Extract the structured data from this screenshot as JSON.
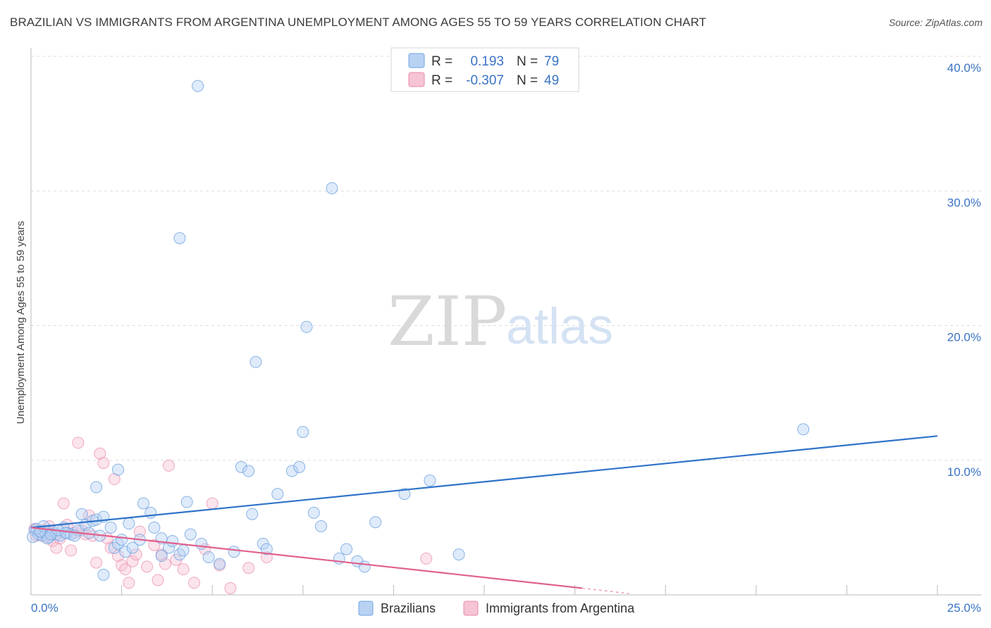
{
  "title": "BRAZILIAN VS IMMIGRANTS FROM ARGENTINA UNEMPLOYMENT AMONG AGES 55 TO 59 YEARS CORRELATION CHART",
  "source": "Source: ZipAtlas.com",
  "watermark": {
    "zip": "ZIP",
    "atlas": "atlas"
  },
  "colors": {
    "blue": "#6fa3e0",
    "blue_fill": "#b8d2f3",
    "blue_line": "#2f73c9",
    "pink": "#e98aa9",
    "pink_fill": "#f6c4d4",
    "pink_line": "#e0608d",
    "tick_text": "#3a73c4",
    "grid": "#dddddd"
  },
  "legend_top": {
    "rows": [
      {
        "r_label": "R =",
        "r_value": "0.193",
        "n_label": "N =",
        "n_value": "79"
      },
      {
        "r_label": "R =",
        "r_value": "-0.307",
        "n_label": "N =",
        "n_value": "49"
      }
    ]
  },
  "legend_bottom": {
    "series1": "Brazilians",
    "series2": "Immigrants from Argentina"
  },
  "chart_data": {
    "type": "scatter",
    "title": "BRAZILIAN VS IMMIGRANTS FROM ARGENTINA UNEMPLOYMENT AMONG AGES 55 TO 59 YEARS CORRELATION CHART",
    "xlabel": "",
    "ylabel": "Unemployment Among Ages 55 to 59 years",
    "xlim": [
      0,
      25
    ],
    "ylim": [
      0,
      40
    ],
    "x_tick_labels": [
      "0.0%",
      "25.0%"
    ],
    "y_tick_values": [
      10,
      20,
      30,
      40
    ],
    "y_tick_labels": [
      "10.0%",
      "20.0%",
      "30.0%",
      "40.0%"
    ],
    "grid": true,
    "legend_position": "top-center",
    "series": [
      {
        "name": "Brazilians",
        "r": 0.193,
        "n": 79,
        "trend": {
          "x0": 0,
          "y0": 5.0,
          "x1": 25,
          "y1": 11.8
        },
        "points": [
          [
            0.1,
            4.8
          ],
          [
            0.2,
            4.5
          ],
          [
            0.3,
            4.4
          ],
          [
            0.4,
            4.6
          ],
          [
            0.5,
            4.3
          ],
          [
            0.6,
            4.7
          ],
          [
            0.7,
            4.5
          ],
          [
            0.8,
            4.4
          ],
          [
            0.9,
            5.0
          ],
          [
            1.0,
            4.6
          ],
          [
            1.1,
            4.5
          ],
          [
            1.3,
            4.8
          ],
          [
            1.4,
            6.0
          ],
          [
            1.5,
            5.2
          ],
          [
            1.6,
            4.6
          ],
          [
            1.7,
            5.5
          ],
          [
            1.8,
            5.6
          ],
          [
            1.9,
            4.4
          ],
          [
            2.0,
            5.8
          ],
          [
            2.2,
            5.0
          ],
          [
            2.3,
            3.5
          ],
          [
            2.4,
            3.8
          ],
          [
            2.5,
            4.1
          ],
          [
            2.6,
            3.2
          ],
          [
            2.7,
            5.3
          ],
          [
            2.8,
            3.5
          ],
          [
            3.0,
            4.1
          ],
          [
            3.1,
            6.8
          ],
          [
            3.3,
            6.1
          ],
          [
            3.4,
            5.0
          ],
          [
            3.6,
            4.2
          ],
          [
            3.8,
            3.5
          ],
          [
            3.9,
            4.0
          ],
          [
            4.1,
            3.0
          ],
          [
            4.2,
            3.3
          ],
          [
            4.3,
            6.9
          ],
          [
            4.4,
            4.5
          ],
          [
            4.6,
            37.8
          ],
          [
            4.7,
            3.8
          ],
          [
            4.9,
            2.8
          ],
          [
            5.2,
            2.3
          ],
          [
            5.6,
            3.2
          ],
          [
            5.8,
            9.5
          ],
          [
            6.0,
            9.2
          ],
          [
            6.1,
            6.0
          ],
          [
            6.2,
            17.3
          ],
          [
            6.4,
            3.8
          ],
          [
            6.5,
            3.4
          ],
          [
            6.8,
            7.5
          ],
          [
            7.2,
            9.2
          ],
          [
            7.4,
            9.5
          ],
          [
            7.5,
            12.1
          ],
          [
            7.6,
            19.9
          ],
          [
            7.8,
            6.1
          ],
          [
            8.0,
            5.1
          ],
          [
            8.3,
            30.2
          ],
          [
            8.5,
            2.7
          ],
          [
            8.7,
            3.4
          ],
          [
            9.0,
            2.5
          ],
          [
            9.2,
            2.1
          ],
          [
            9.5,
            5.4
          ],
          [
            10.3,
            7.5
          ],
          [
            11.0,
            8.5
          ],
          [
            11.8,
            3.0
          ],
          [
            21.3,
            12.3
          ],
          [
            0.05,
            4.3
          ],
          [
            0.15,
            4.9
          ],
          [
            0.35,
            5.1
          ],
          [
            0.45,
            4.2
          ],
          [
            0.55,
            4.5
          ],
          [
            0.75,
            4.8
          ],
          [
            0.95,
            4.6
          ],
          [
            1.2,
            4.4
          ],
          [
            1.8,
            8.0
          ],
          [
            2.4,
            9.3
          ],
          [
            3.6,
            2.9
          ],
          [
            4.1,
            26.5
          ],
          [
            2.0,
            1.5
          ],
          [
            0.25,
            4.7
          ]
        ]
      },
      {
        "name": "Immigrants from Argentina",
        "r": -0.307,
        "n": 49,
        "trend": {
          "x0": 0,
          "y0": 5.0,
          "x1": 15.2,
          "y1": 0.5
        },
        "trend_dashed_to": {
          "x": 16.5,
          "y": 0.1
        },
        "points": [
          [
            0.1,
            4.9
          ],
          [
            0.2,
            4.5
          ],
          [
            0.3,
            4.6
          ],
          [
            0.4,
            4.3
          ],
          [
            0.5,
            5.1
          ],
          [
            0.6,
            4.0
          ],
          [
            0.7,
            3.5
          ],
          [
            0.8,
            4.2
          ],
          [
            0.9,
            6.8
          ],
          [
            1.0,
            5.2
          ],
          [
            1.1,
            3.3
          ],
          [
            1.2,
            4.6
          ],
          [
            1.3,
            11.3
          ],
          [
            1.4,
            4.8
          ],
          [
            1.5,
            4.5
          ],
          [
            1.6,
            5.9
          ],
          [
            1.7,
            4.4
          ],
          [
            1.8,
            2.4
          ],
          [
            1.9,
            10.5
          ],
          [
            2.0,
            9.8
          ],
          [
            2.1,
            4.2
          ],
          [
            2.2,
            3.5
          ],
          [
            2.3,
            8.6
          ],
          [
            2.4,
            2.9
          ],
          [
            2.5,
            2.2
          ],
          [
            2.6,
            1.9
          ],
          [
            2.7,
            0.9
          ],
          [
            2.8,
            2.5
          ],
          [
            2.9,
            3.0
          ],
          [
            3.0,
            4.7
          ],
          [
            3.2,
            2.1
          ],
          [
            3.4,
            3.7
          ],
          [
            3.5,
            1.1
          ],
          [
            3.6,
            3.0
          ],
          [
            3.7,
            2.3
          ],
          [
            3.8,
            9.6
          ],
          [
            4.0,
            2.6
          ],
          [
            4.2,
            1.9
          ],
          [
            4.5,
            0.9
          ],
          [
            4.8,
            3.4
          ],
          [
            5.0,
            6.8
          ],
          [
            5.2,
            2.2
          ],
          [
            5.5,
            0.5
          ],
          [
            6.0,
            2.0
          ],
          [
            6.5,
            2.8
          ],
          [
            10.9,
            2.7
          ],
          [
            0.15,
            4.4
          ],
          [
            0.35,
            4.8
          ],
          [
            0.55,
            4.6
          ]
        ]
      }
    ]
  }
}
